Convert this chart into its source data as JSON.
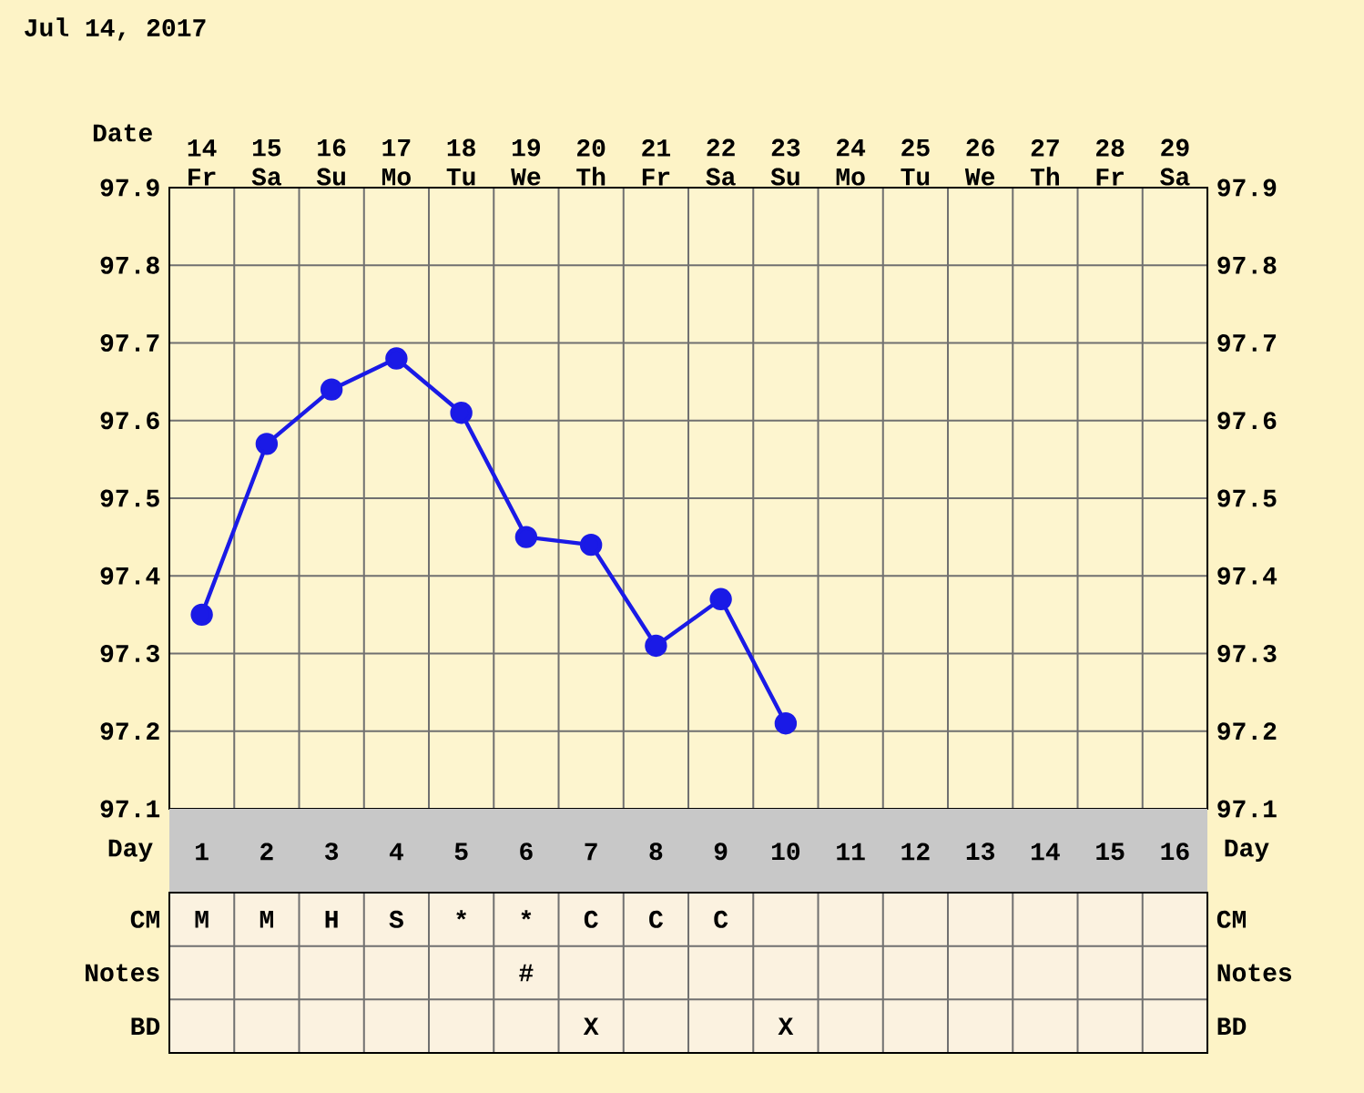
{
  "chart_data": [
    {
      "type": "line",
      "title": "Jul 14, 2017",
      "xlabel": "Date",
      "categories": [
        "14 Fr",
        "15 Sa",
        "16 Su",
        "17 Mo",
        "18 Tu",
        "19 We",
        "20 Th",
        "21 Fr",
        "22 Sa",
        "23 Su",
        "24 Mo",
        "25 Tu",
        "26 We",
        "27 Th",
        "28 Fr",
        "29 Sa"
      ],
      "series": [
        {
          "color": "#1a1ae6",
          "values": [
            97.35,
            97.57,
            97.64,
            97.68,
            97.61,
            97.45,
            97.44,
            97.31,
            97.37,
            97.21,
            null,
            null,
            null,
            null,
            null,
            null
          ]
        }
      ],
      "ylim": [
        97.1,
        97.9
      ],
      "yticks": [
        97.1,
        97.2,
        97.3,
        97.4,
        97.5,
        97.6,
        97.7,
        97.8,
        97.9
      ],
      "y2lim": [
        97.1,
        97.9
      ],
      "y2ticks": [
        97.1,
        97.2,
        97.3,
        97.4,
        97.5,
        97.6,
        97.7,
        97.8,
        97.9
      ],
      "grid": true,
      "marker": "circle",
      "line_style": "solid"
    },
    {
      "type": "heatmap",
      "xlabel": "Day",
      "categories": [
        "1",
        "2",
        "3",
        "4",
        "5",
        "6",
        "7",
        "8",
        "9",
        "10",
        "11",
        "12",
        "13",
        "14",
        "15",
        "16"
      ],
      "y_categories": [
        "CM",
        "Notes",
        "BD"
      ],
      "y2_categories": [
        "CM",
        "Notes",
        "BD"
      ],
      "cells": [
        [
          null,
          null,
          null,
          null,
          null,
          null,
          null,
          null,
          null,
          null,
          null,
          null,
          null,
          null,
          null,
          null
        ],
        [
          null,
          null,
          null,
          null,
          null,
          null,
          null,
          null,
          null,
          null,
          null,
          null,
          null,
          null,
          null,
          null
        ],
        [
          null,
          null,
          null,
          null,
          null,
          null,
          null,
          null,
          null,
          null,
          null,
          null,
          null,
          null,
          null,
          null
        ]
      ],
      "cell_labels": [
        [
          "M",
          "M",
          "H",
          "S",
          "*",
          "*",
          "C",
          "C",
          "C",
          null,
          null,
          null,
          null,
          null,
          null,
          null
        ],
        [
          null,
          null,
          null,
          null,
          null,
          "#",
          null,
          null,
          null,
          null,
          null,
          null,
          null,
          null,
          null,
          null
        ],
        [
          null,
          null,
          null,
          null,
          null,
          null,
          "X",
          null,
          null,
          "X",
          null,
          null,
          null,
          null,
          null,
          null
        ]
      ]
    }
  ]
}
